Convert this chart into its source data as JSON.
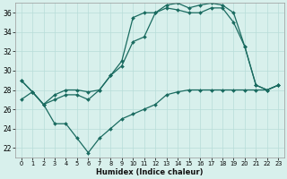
{
  "xlabel": "Humidex (Indice chaleur)",
  "bg_color": "#d8f0ec",
  "grid_color": "#b8ddd8",
  "line_color": "#1a6b60",
  "xlim": [
    -0.5,
    23.5
  ],
  "ylim": [
    21,
    37
  ],
  "yticks": [
    22,
    24,
    26,
    28,
    30,
    32,
    34,
    36
  ],
  "xticks": [
    0,
    1,
    2,
    3,
    4,
    5,
    6,
    7,
    8,
    9,
    10,
    11,
    12,
    13,
    14,
    15,
    16,
    17,
    18,
    19,
    20,
    21,
    22,
    23
  ],
  "line_top_x": [
    0,
    1,
    2,
    3,
    4,
    5,
    6,
    7,
    8,
    9,
    10,
    11,
    12,
    13,
    14,
    15,
    16,
    17,
    18,
    19,
    20,
    21,
    22,
    23
  ],
  "line_top_y": [
    29,
    27.8,
    26.5,
    27.5,
    28,
    28,
    27.8,
    28,
    29.5,
    31,
    35.5,
    36.0,
    36.0,
    36.8,
    37.0,
    36.5,
    36.8,
    37.0,
    36.8,
    36.0,
    32.5,
    28.5,
    28.0,
    28.5
  ],
  "line_mid_x": [
    0,
    1,
    2,
    3,
    4,
    5,
    6,
    7,
    8,
    9,
    10,
    11,
    12,
    13,
    14,
    15,
    16,
    17,
    18,
    19,
    20,
    21,
    22,
    23
  ],
  "line_mid_y": [
    29,
    27.8,
    26.5,
    27.0,
    27.5,
    27.5,
    27.0,
    28.0,
    29.5,
    30.5,
    33.0,
    33.5,
    36.0,
    36.5,
    36.3,
    36.0,
    36.0,
    36.5,
    36.5,
    35.0,
    32.5,
    28.5,
    28.0,
    28.5
  ],
  "line_bot_x": [
    0,
    1,
    2,
    3,
    4,
    5,
    6,
    7,
    8,
    9,
    10,
    11,
    12,
    13,
    14,
    15,
    16,
    17,
    18,
    19,
    20,
    21,
    22,
    23
  ],
  "line_bot_y": [
    27,
    27.8,
    26.5,
    24.5,
    24.5,
    23.0,
    21.5,
    23.0,
    24.0,
    25.0,
    25.5,
    26.0,
    26.5,
    27.5,
    27.8,
    28.0,
    28.0,
    28.0,
    28.0,
    28.0,
    28.0,
    28.0,
    28.0,
    28.5
  ]
}
